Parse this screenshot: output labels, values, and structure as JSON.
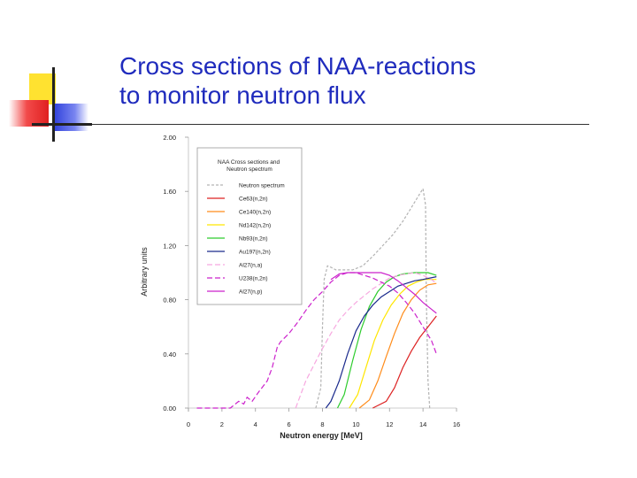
{
  "slide": {
    "title_line1": "Cross sections of NAA-reactions",
    "title_line2": "to monitor neutron flux",
    "accent_colors": {
      "title": "#1f2bbd",
      "yellow": "#ffe230",
      "red": "#e02020",
      "blue": "#3344dd"
    }
  },
  "chart_data": {
    "type": "line",
    "title": "NAA Cross sections and Neutron spectrum",
    "xlabel": "Neutron energy [MeV]",
    "ylabel": "Arbitrary units",
    "xlim": [
      0,
      16
    ],
    "ylim": [
      0,
      2
    ],
    "x_ticks": [
      "0",
      "2",
      "4",
      "6",
      "8",
      "10",
      "12",
      "14",
      "16"
    ],
    "y_ticks": [
      "0.00",
      "0.40",
      "0.80",
      "1.20",
      "1.60",
      "2.00"
    ],
    "grid": false,
    "legend_position": "top-left",
    "series": [
      {
        "name": "Neutron spectrum",
        "color": "#b3b3b3",
        "dash": "3,2",
        "points": [
          [
            7.6,
            0
          ],
          [
            7.9,
            0.15
          ],
          [
            8.0,
            0.6
          ],
          [
            8.1,
            0.95
          ],
          [
            8.3,
            1.05
          ],
          [
            8.5,
            1.04
          ],
          [
            8.8,
            1.02
          ],
          [
            9.2,
            1.02
          ],
          [
            9.8,
            1.02
          ],
          [
            10.4,
            1.05
          ],
          [
            11.0,
            1.12
          ],
          [
            11.6,
            1.2
          ],
          [
            12.2,
            1.28
          ],
          [
            12.8,
            1.38
          ],
          [
            13.3,
            1.48
          ],
          [
            13.7,
            1.56
          ],
          [
            14.0,
            1.62
          ],
          [
            14.15,
            1.5
          ],
          [
            14.2,
            0.8
          ],
          [
            14.3,
            0.2
          ],
          [
            14.4,
            0
          ]
        ]
      },
      {
        "name": "Ce63(n,2n)",
        "color": "#dd2222",
        "dash": "",
        "points": [
          [
            11.0,
            0
          ],
          [
            11.8,
            0.05
          ],
          [
            12.3,
            0.15
          ],
          [
            12.8,
            0.3
          ],
          [
            13.3,
            0.42
          ],
          [
            13.8,
            0.52
          ],
          [
            14.3,
            0.6
          ],
          [
            14.8,
            0.68
          ]
        ]
      },
      {
        "name": "Ce140(n,2n)",
        "color": "#ff8c1a",
        "dash": "",
        "points": [
          [
            10.2,
            0
          ],
          [
            10.8,
            0.06
          ],
          [
            11.3,
            0.2
          ],
          [
            11.8,
            0.38
          ],
          [
            12.3,
            0.55
          ],
          [
            12.8,
            0.7
          ],
          [
            13.3,
            0.8
          ],
          [
            13.8,
            0.87
          ],
          [
            14.3,
            0.91
          ],
          [
            14.8,
            0.92
          ]
        ]
      },
      {
        "name": "Nd142(n,2n)",
        "color": "#ffe600",
        "dash": "",
        "points": [
          [
            9.6,
            0
          ],
          [
            10.1,
            0.1
          ],
          [
            10.6,
            0.3
          ],
          [
            11.1,
            0.5
          ],
          [
            11.6,
            0.65
          ],
          [
            12.1,
            0.76
          ],
          [
            12.6,
            0.84
          ],
          [
            13.1,
            0.9
          ],
          [
            13.6,
            0.93
          ],
          [
            14.1,
            0.95
          ],
          [
            14.8,
            0.95
          ]
        ]
      },
      {
        "name": "Nb93(n,2n)",
        "color": "#2ecc2e",
        "dash": "",
        "points": [
          [
            8.9,
            0
          ],
          [
            9.3,
            0.1
          ],
          [
            9.8,
            0.35
          ],
          [
            10.3,
            0.58
          ],
          [
            10.8,
            0.75
          ],
          [
            11.3,
            0.86
          ],
          [
            11.8,
            0.93
          ],
          [
            12.3,
            0.97
          ],
          [
            12.8,
            0.99
          ],
          [
            13.5,
            1.0
          ],
          [
            14.3,
            1.0
          ],
          [
            14.8,
            0.98
          ]
        ]
      },
      {
        "name": "Au197(n,2n)",
        "color": "#1a2a8c",
        "dash": "",
        "points": [
          [
            8.2,
            0
          ],
          [
            8.5,
            0.05
          ],
          [
            9.0,
            0.2
          ],
          [
            9.5,
            0.4
          ],
          [
            10.0,
            0.57
          ],
          [
            10.5,
            0.68
          ],
          [
            11.0,
            0.76
          ],
          [
            11.5,
            0.82
          ],
          [
            12.0,
            0.86
          ],
          [
            12.5,
            0.9
          ],
          [
            13.0,
            0.92
          ],
          [
            13.5,
            0.94
          ],
          [
            14.0,
            0.95
          ],
          [
            14.8,
            0.97
          ]
        ]
      },
      {
        "name": "Al27(n,a)",
        "color": "#f7a8e0",
        "dash": "6,3",
        "points": [
          [
            6.4,
            0
          ],
          [
            6.7,
            0.1
          ],
          [
            7.0,
            0.2
          ],
          [
            7.5,
            0.32
          ],
          [
            8.0,
            0.44
          ],
          [
            8.5,
            0.55
          ],
          [
            9.0,
            0.65
          ],
          [
            9.5,
            0.72
          ],
          [
            10.0,
            0.78
          ],
          [
            10.5,
            0.83
          ],
          [
            11.0,
            0.88
          ],
          [
            11.5,
            0.92
          ],
          [
            12.0,
            0.96
          ],
          [
            12.5,
            0.98
          ],
          [
            13.0,
            0.99
          ],
          [
            13.5,
            1.0
          ],
          [
            14.0,
            0.98
          ],
          [
            14.5,
            0.95
          ],
          [
            14.8,
            0.92
          ]
        ]
      },
      {
        "name": "U238(n,2n)",
        "color": "#cc22cc",
        "dash": "6,3",
        "points": [
          [
            0.5,
            0
          ],
          [
            2.5,
            0
          ],
          [
            3.0,
            0.05
          ],
          [
            3.3,
            0.03
          ],
          [
            3.5,
            0.08
          ],
          [
            3.8,
            0.05
          ],
          [
            4.2,
            0.12
          ],
          [
            4.7,
            0.2
          ],
          [
            5.0,
            0.3
          ],
          [
            5.3,
            0.45
          ],
          [
            5.5,
            0.49
          ],
          [
            6.0,
            0.55
          ],
          [
            6.5,
            0.63
          ],
          [
            7.0,
            0.72
          ],
          [
            7.5,
            0.8
          ],
          [
            8.0,
            0.86
          ],
          [
            8.5,
            0.93
          ],
          [
            9.0,
            0.98
          ],
          [
            9.5,
            1.0
          ],
          [
            10.0,
            1.0
          ],
          [
            10.5,
            0.98
          ],
          [
            11.0,
            0.96
          ],
          [
            11.5,
            0.93
          ],
          [
            12.0,
            0.9
          ],
          [
            12.5,
            0.85
          ],
          [
            13.0,
            0.78
          ],
          [
            13.5,
            0.7
          ],
          [
            14.0,
            0.6
          ],
          [
            14.5,
            0.5
          ],
          [
            14.8,
            0.4
          ]
        ]
      },
      {
        "name": "Al27(n,p)",
        "color": "#cc22cc",
        "dash": "",
        "points": [
          [
            8.5,
            0.95
          ],
          [
            9.0,
            0.99
          ],
          [
            9.5,
            1.0
          ],
          [
            10.0,
            1.0
          ],
          [
            10.5,
            1.0
          ],
          [
            11.0,
            1.0
          ],
          [
            11.5,
            1.0
          ],
          [
            12.0,
            0.98
          ],
          [
            12.5,
            0.94
          ],
          [
            13.0,
            0.89
          ],
          [
            13.5,
            0.84
          ],
          [
            14.0,
            0.78
          ],
          [
            14.5,
            0.73
          ],
          [
            14.8,
            0.7
          ]
        ]
      }
    ]
  }
}
